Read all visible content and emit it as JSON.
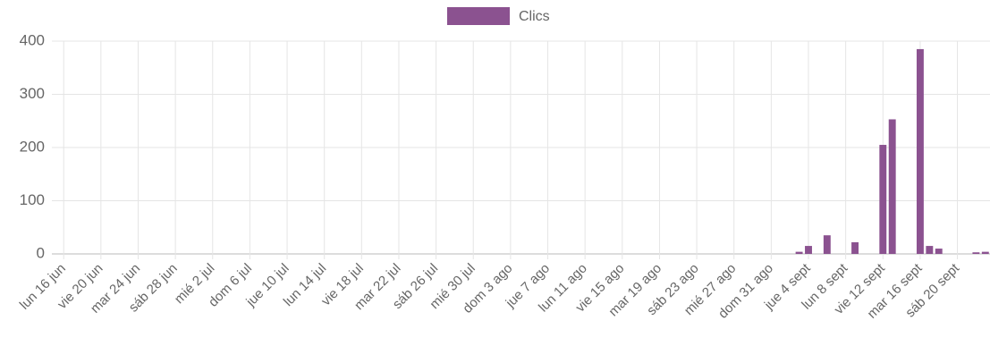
{
  "chart_data": {
    "type": "bar",
    "categories": [
      "lun 16 jun",
      null,
      null,
      null,
      "vie 20 jun",
      null,
      null,
      null,
      "mar 24 jun",
      null,
      null,
      null,
      "sáb 28 jun",
      null,
      null,
      null,
      "mié 2 jul",
      null,
      null,
      null,
      "dom 6 jul",
      null,
      null,
      null,
      "jue 10 jul",
      null,
      null,
      null,
      "lun 14 jul",
      null,
      null,
      null,
      "vie 18 jul",
      null,
      null,
      null,
      "mar 22 jul",
      null,
      null,
      null,
      "sáb 26 jul",
      null,
      null,
      null,
      "mié 30 jul",
      null,
      null,
      null,
      "dom 3 ago",
      null,
      null,
      null,
      "jue 7 ago",
      null,
      null,
      null,
      "lun 11 ago",
      null,
      null,
      null,
      "vie 15 ago",
      null,
      null,
      null,
      "mar 19 ago",
      null,
      null,
      null,
      "sáb 23 ago",
      null,
      null,
      null,
      "mié 27 ago",
      null,
      null,
      null,
      "dom 31 ago",
      null,
      null,
      null,
      "jue 4 sept",
      null,
      null,
      null,
      "lun 8 sept",
      null,
      null,
      null,
      "vie 12 sept",
      null,
      null,
      null,
      "mar 16 sept",
      null,
      null,
      null,
      "sáb 20 sept",
      null,
      null,
      null
    ],
    "series": [
      {
        "name": "Clics",
        "color": "#8b5290",
        "values": [
          0,
          0,
          0,
          0,
          0,
          0,
          0,
          0,
          0,
          0,
          0,
          0,
          0,
          0,
          0,
          0,
          0,
          0,
          0,
          0,
          0,
          0,
          0,
          0,
          0,
          0,
          0,
          0,
          0,
          0,
          0,
          0,
          0,
          0,
          0,
          0,
          0,
          0,
          0,
          0,
          0,
          0,
          0,
          0,
          0,
          0,
          0,
          0,
          0,
          0,
          0,
          0,
          0,
          0,
          0,
          0,
          0,
          0,
          0,
          0,
          0,
          0,
          0,
          0,
          0,
          0,
          0,
          0,
          0,
          0,
          0,
          0,
          0,
          0,
          0,
          0,
          0,
          0,
          0,
          4,
          15,
          0,
          35,
          0,
          0,
          22,
          0,
          0,
          205,
          253,
          0,
          0,
          385,
          15,
          10,
          0,
          0,
          0,
          3,
          4
        ]
      }
    ],
    "ylim": [
      0,
      400
    ],
    "yticks": [
      0,
      100,
      200,
      300,
      400
    ],
    "grid": true,
    "legend": "top"
  }
}
